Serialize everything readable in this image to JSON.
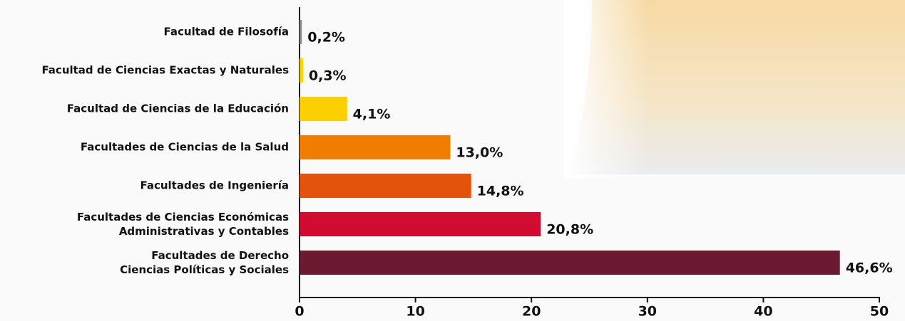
{
  "chart_data": {
    "type": "bar",
    "orientation": "horizontal",
    "categories": [
      "Facultad de Filosofía",
      "Facultad de Ciencias Exactas y Naturales",
      "Facultad de  Ciencias de la Educación",
      "Facultades de Ciencias de la Salud",
      "Facultades de Ingeniería",
      "Facultades de Ciencias Económicas\nAdministrativas y Contables",
      "Facultades de Derecho\nCiencias Políticas y Sociales"
    ],
    "values": [
      0.2,
      0.3,
      4.1,
      13.0,
      14.8,
      20.8,
      46.6
    ],
    "value_labels": [
      "0,2%",
      "0,3%",
      "4,1%",
      "13,0%",
      "14,8%",
      "20,8%",
      "46,6%"
    ],
    "colors": [
      "#8c8c8c",
      "#f5d400",
      "#fccf00",
      "#ee7d00",
      "#e4530b",
      "#d20c30",
      "#6a1b31"
    ],
    "xlim": [
      0,
      50
    ],
    "xticks": [
      0,
      10,
      20,
      30,
      40,
      50
    ]
  }
}
